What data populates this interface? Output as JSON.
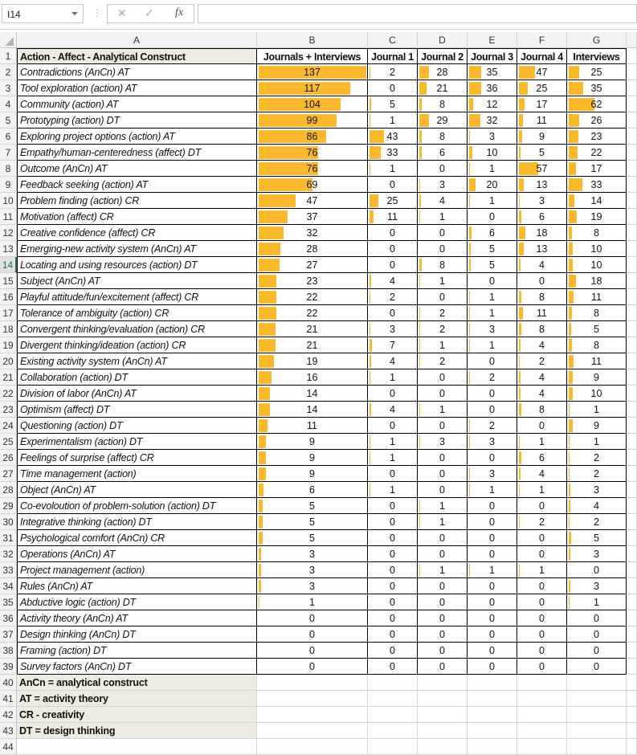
{
  "formula_bar": {
    "name_box": "I14",
    "cancel_icon": "✕",
    "enter_icon": "✓",
    "fx_label": "fx",
    "formula": ""
  },
  "columns": [
    "A",
    "B",
    "C",
    "D",
    "E",
    "F",
    "G"
  ],
  "selected_row": 14,
  "header": [
    "Action - Affect - Analytical Construct",
    "Journals + Interviews",
    "Journal 1",
    "Journal 2",
    "Journal 3",
    "Journal 4",
    "Interviews"
  ],
  "rows": [
    [
      "Contradictions (AnCn) AT",
      137,
      2,
      28,
      35,
      47,
      25
    ],
    [
      "Tool exploration (action) AT",
      117,
      0,
      21,
      36,
      25,
      35
    ],
    [
      "Community (action) AT",
      104,
      5,
      8,
      12,
      17,
      62
    ],
    [
      "Prototyping (action) DT",
      99,
      1,
      29,
      32,
      11,
      26
    ],
    [
      "Exploring project options (action) AT",
      86,
      43,
      8,
      3,
      9,
      23
    ],
    [
      "Empathy/human-centeredness (affect) DT",
      76,
      33,
      6,
      10,
      5,
      22
    ],
    [
      "Outcome (AnCn) AT",
      76,
      1,
      0,
      1,
      57,
      17
    ],
    [
      "Feedback seeking (action) AT",
      69,
      0,
      3,
      20,
      13,
      33
    ],
    [
      "Problem finding (action) CR",
      47,
      25,
      4,
      1,
      3,
      14
    ],
    [
      "Motivation (affect) CR",
      37,
      11,
      1,
      0,
      6,
      19
    ],
    [
      "Creative confidence (affect) CR",
      32,
      0,
      0,
      6,
      18,
      8
    ],
    [
      "Emerging-new activity system (AnCn) AT",
      28,
      0,
      0,
      5,
      13,
      10
    ],
    [
      "Locating and using resources (action) DT",
      27,
      0,
      8,
      5,
      4,
      10
    ],
    [
      "Subject (AnCn) AT",
      23,
      4,
      1,
      0,
      0,
      18
    ],
    [
      "Playful attitude/fun/excitement (affect) CR",
      22,
      2,
      0,
      1,
      8,
      11
    ],
    [
      "Tolerance of ambiguity (action) CR",
      22,
      0,
      2,
      1,
      11,
      8
    ],
    [
      "Convergent thinking/evaluation (action) CR",
      21,
      3,
      2,
      3,
      8,
      5
    ],
    [
      "Divergent thinking/ideation (action) CR",
      21,
      7,
      1,
      1,
      4,
      8
    ],
    [
      "Existing activity system (AnCn) AT",
      19,
      4,
      2,
      0,
      2,
      11
    ],
    [
      "Collaboration (action) DT",
      16,
      1,
      0,
      2,
      4,
      9
    ],
    [
      "Division of labor (AnCn) AT",
      14,
      0,
      0,
      0,
      4,
      10
    ],
    [
      "Optimism (affect) DT",
      14,
      4,
      1,
      0,
      8,
      1
    ],
    [
      "Questioning (action) DT",
      11,
      0,
      0,
      2,
      0,
      9
    ],
    [
      "Experimentalism (action) DT",
      9,
      1,
      3,
      3,
      1,
      1
    ],
    [
      "Feelings of surprise (affect) CR",
      9,
      1,
      0,
      0,
      6,
      2
    ],
    [
      "Time management (action)",
      9,
      0,
      0,
      3,
      4,
      2
    ],
    [
      "Object (AnCn) AT",
      6,
      1,
      0,
      1,
      1,
      3
    ],
    [
      "Co-evoloution of problem-solution (action) DT",
      5,
      0,
      1,
      0,
      0,
      4
    ],
    [
      "Integrative thinking (action) DT",
      5,
      0,
      1,
      0,
      2,
      2
    ],
    [
      "Psychological comfort (AnCn) CR",
      5,
      0,
      0,
      0,
      0,
      5
    ],
    [
      "Operations (AnCn) AT",
      3,
      0,
      0,
      0,
      0,
      3
    ],
    [
      "Project management (action)",
      3,
      0,
      1,
      1,
      1,
      0
    ],
    [
      "Rules (AnCn) AT",
      3,
      0,
      0,
      0,
      0,
      3
    ],
    [
      "Abductive logic (action) DT",
      1,
      0,
      0,
      0,
      0,
      1
    ],
    [
      "Activity theory (AnCn) AT",
      0,
      0,
      0,
      0,
      0,
      0
    ],
    [
      "Design thinking (AnCn) DT",
      0,
      0,
      0,
      0,
      0,
      0
    ],
    [
      "Framing (action) DT",
      0,
      0,
      0,
      0,
      0,
      0
    ],
    [
      "Survey factors (AnCn) DT",
      0,
      0,
      0,
      0,
      0,
      0
    ]
  ],
  "notes": [
    "AnCn = analytical construct",
    "AT = activity theory",
    "CR - creativity",
    "DT = design thinking"
  ],
  "data_bar": {
    "color": "#fdb92c",
    "max": 137
  },
  "total_rows": 44
}
